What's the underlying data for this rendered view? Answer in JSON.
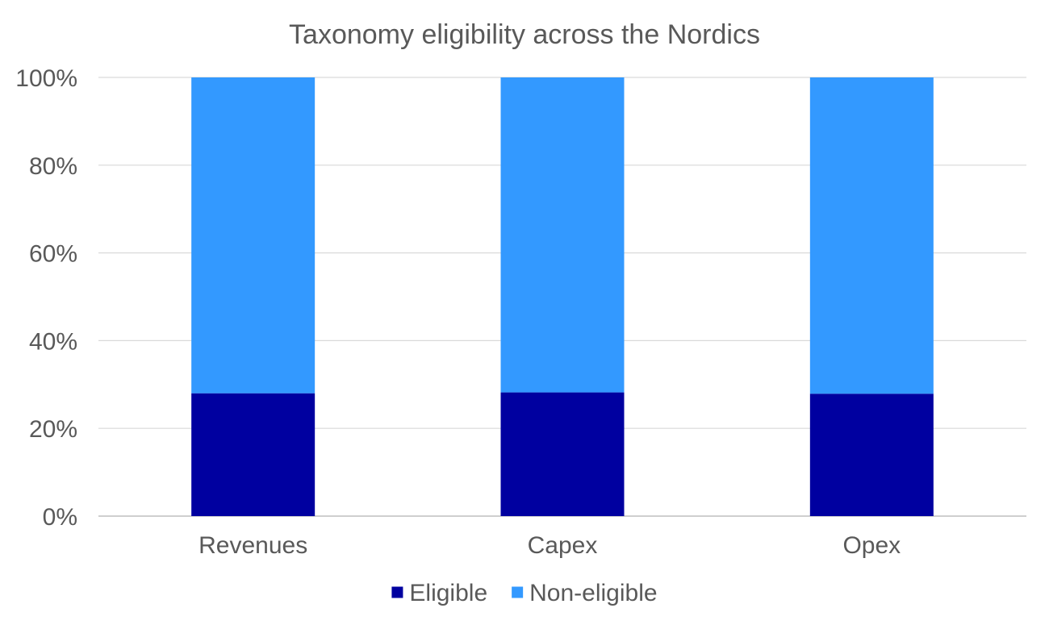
{
  "chart_data": {
    "type": "bar",
    "stacked": true,
    "title": "Taxonomy eligibility across the Nordics",
    "xlabel": "",
    "ylabel": "",
    "categories": [
      "Revenues",
      "Capex",
      "Opex"
    ],
    "series": [
      {
        "name": "Eligible",
        "values": [
          0.28,
          0.282,
          0.279
        ],
        "color": "#0000A0"
      },
      {
        "name": "Non-eligible",
        "values": [
          0.72,
          0.718,
          0.721
        ],
        "color": "#3399FF"
      }
    ],
    "ylim": [
      0,
      1
    ],
    "yticks": [
      0,
      0.2,
      0.4,
      0.6,
      0.8,
      1.0
    ],
    "ytick_labels": [
      "0%",
      "20%",
      "40%",
      "60%",
      "80%",
      "100%"
    ],
    "grid": true,
    "legend_position": "bottom",
    "colors": {
      "text": "#595959",
      "grid": "#D9D9D9",
      "axis": "#BFBFBF"
    }
  }
}
